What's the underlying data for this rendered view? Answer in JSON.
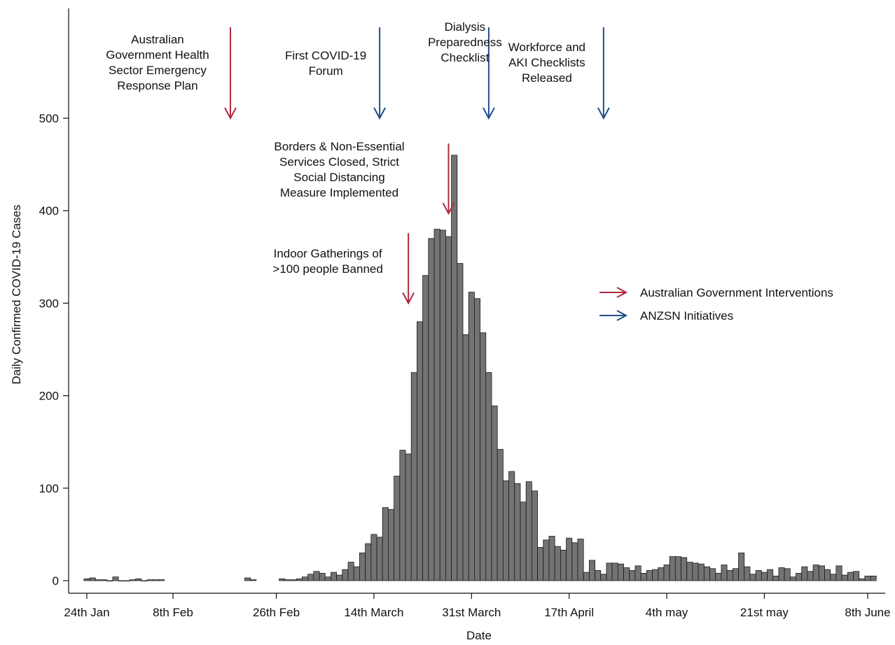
{
  "chart_data": {
    "type": "bar",
    "xlabel": "Date",
    "ylabel": "Daily Confirmed COVID-19 Cases",
    "ylim": [
      0,
      500
    ],
    "yticks": [
      0,
      100,
      200,
      300,
      400,
      500
    ],
    "x_start": "2020-01-24",
    "x_end": "2020-06-08",
    "xticks": [
      {
        "date": "2020-01-24",
        "label": "24th Jan"
      },
      {
        "date": "2020-02-08",
        "label": "8th Feb"
      },
      {
        "date": "2020-02-26",
        "label": "26th Feb"
      },
      {
        "date": "2020-03-14",
        "label": "14th March"
      },
      {
        "date": "2020-03-31",
        "label": "31st March"
      },
      {
        "date": "2020-04-17",
        "label": "17th April"
      },
      {
        "date": "2020-05-04",
        "label": "4th may"
      },
      {
        "date": "2020-05-21",
        "label": "21st may"
      },
      {
        "date": "2020-06-08",
        "label": "8th June"
      }
    ],
    "bar_color": "#737373",
    "values": [
      [
        "2020-01-24",
        2
      ],
      [
        "2020-01-25",
        3
      ],
      [
        "2020-01-26",
        1
      ],
      [
        "2020-01-27",
        1
      ],
      [
        "2020-01-28",
        0
      ],
      [
        "2020-01-29",
        4
      ],
      [
        "2020-01-30",
        0
      ],
      [
        "2020-01-31",
        0
      ],
      [
        "2020-02-01",
        1
      ],
      [
        "2020-02-02",
        2
      ],
      [
        "2020-02-03",
        0
      ],
      [
        "2020-02-04",
        1
      ],
      [
        "2020-02-05",
        1
      ],
      [
        "2020-02-06",
        1
      ],
      [
        "2020-02-21",
        3
      ],
      [
        "2020-02-22",
        1
      ],
      [
        "2020-02-27",
        2
      ],
      [
        "2020-02-28",
        1
      ],
      [
        "2020-02-29",
        1
      ],
      [
        "2020-03-01",
        2
      ],
      [
        "2020-03-02",
        4
      ],
      [
        "2020-03-03",
        7
      ],
      [
        "2020-03-04",
        10
      ],
      [
        "2020-03-05",
        8
      ],
      [
        "2020-03-06",
        4
      ],
      [
        "2020-03-07",
        9
      ],
      [
        "2020-03-08",
        6
      ],
      [
        "2020-03-09",
        12
      ],
      [
        "2020-03-10",
        20
      ],
      [
        "2020-03-11",
        15
      ],
      [
        "2020-03-12",
        30
      ],
      [
        "2020-03-13",
        40
      ],
      [
        "2020-03-14",
        50
      ],
      [
        "2020-03-15",
        47
      ],
      [
        "2020-03-16",
        79
      ],
      [
        "2020-03-17",
        77
      ],
      [
        "2020-03-18",
        113
      ],
      [
        "2020-03-19",
        141
      ],
      [
        "2020-03-20",
        137
      ],
      [
        "2020-03-21",
        225
      ],
      [
        "2020-03-22",
        280
      ],
      [
        "2020-03-23",
        330
      ],
      [
        "2020-03-24",
        370
      ],
      [
        "2020-03-25",
        380
      ],
      [
        "2020-03-26",
        379
      ],
      [
        "2020-03-27",
        372
      ],
      [
        "2020-03-28",
        460
      ],
      [
        "2020-03-29",
        343
      ],
      [
        "2020-03-30",
        266
      ],
      [
        "2020-03-31",
        312
      ],
      [
        "2020-04-01",
        305
      ],
      [
        "2020-04-02",
        268
      ],
      [
        "2020-04-03",
        225
      ],
      [
        "2020-04-04",
        189
      ],
      [
        "2020-04-05",
        142
      ],
      [
        "2020-04-06",
        108
      ],
      [
        "2020-04-07",
        118
      ],
      [
        "2020-04-08",
        105
      ],
      [
        "2020-04-09",
        85
      ],
      [
        "2020-04-10",
        107
      ],
      [
        "2020-04-11",
        97
      ],
      [
        "2020-04-12",
        36
      ],
      [
        "2020-04-13",
        44
      ],
      [
        "2020-04-14",
        48
      ],
      [
        "2020-04-15",
        37
      ],
      [
        "2020-04-16",
        33
      ],
      [
        "2020-04-17",
        46
      ],
      [
        "2020-04-18",
        41
      ],
      [
        "2020-04-19",
        45
      ],
      [
        "2020-04-20",
        9
      ],
      [
        "2020-04-21",
        22
      ],
      [
        "2020-04-22",
        11
      ],
      [
        "2020-04-23",
        7
      ],
      [
        "2020-04-24",
        19
      ],
      [
        "2020-04-25",
        19
      ],
      [
        "2020-04-26",
        18
      ],
      [
        "2020-04-27",
        14
      ],
      [
        "2020-04-28",
        11
      ],
      [
        "2020-04-29",
        16
      ],
      [
        "2020-04-30",
        8
      ],
      [
        "2020-05-01",
        11
      ],
      [
        "2020-05-02",
        12
      ],
      [
        "2020-05-03",
        14
      ],
      [
        "2020-05-04",
        17
      ],
      [
        "2020-05-05",
        26
      ],
      [
        "2020-05-06",
        26
      ],
      [
        "2020-05-07",
        25
      ],
      [
        "2020-05-08",
        20
      ],
      [
        "2020-05-09",
        19
      ],
      [
        "2020-05-10",
        18
      ],
      [
        "2020-05-11",
        15
      ],
      [
        "2020-05-12",
        13
      ],
      [
        "2020-05-13",
        8
      ],
      [
        "2020-05-14",
        17
      ],
      [
        "2020-05-15",
        11
      ],
      [
        "2020-05-16",
        13
      ],
      [
        "2020-05-17",
        30
      ],
      [
        "2020-05-18",
        15
      ],
      [
        "2020-05-19",
        7
      ],
      [
        "2020-05-20",
        11
      ],
      [
        "2020-05-21",
        9
      ],
      [
        "2020-05-22",
        12
      ],
      [
        "2020-05-23",
        5
      ],
      [
        "2020-05-24",
        14
      ],
      [
        "2020-05-25",
        13
      ],
      [
        "2020-05-26",
        4
      ],
      [
        "2020-05-27",
        8
      ],
      [
        "2020-05-28",
        15
      ],
      [
        "2020-05-29",
        10
      ],
      [
        "2020-05-30",
        17
      ],
      [
        "2020-05-31",
        16
      ],
      [
        "2020-06-01",
        12
      ],
      [
        "2020-06-02",
        7
      ],
      [
        "2020-06-03",
        16
      ],
      [
        "2020-06-04",
        6
      ],
      [
        "2020-06-05",
        9
      ],
      [
        "2020-06-06",
        10
      ],
      [
        "2020-06-07",
        2
      ],
      [
        "2020-06-08",
        5
      ],
      [
        "2020-06-09",
        5
      ]
    ],
    "annotations": [
      {
        "category": "government",
        "date": "2020-02-18",
        "tip_value": 500,
        "lines": [
          "Australian",
          "Government Health",
          "Sector Emergency",
          "Response Plan"
        ]
      },
      {
        "category": "anzsn",
        "date": "2020-03-15",
        "tip_value": 500,
        "lines": [
          "First COVID-19",
          "Forum"
        ]
      },
      {
        "category": "anzsn",
        "date": "2020-04-03",
        "tip_value": 500,
        "lines": [
          "Dialysis",
          "Preparedness",
          "Checklist"
        ]
      },
      {
        "category": "anzsn",
        "date": "2020-04-23",
        "tip_value": 500,
        "lines": [
          "Workforce and",
          "AKI Checklists",
          "Released"
        ]
      },
      {
        "category": "government",
        "date": "2020-03-27",
        "tip_value": 397,
        "lines": [
          "Borders & Non-Essential",
          "Services Closed, Strict",
          "Social Distancing",
          "Measure Implemented"
        ]
      },
      {
        "category": "government",
        "date": "2020-03-20",
        "tip_value": 300,
        "lines": [
          "Indoor Gatherings of",
          ">100 people Banned"
        ]
      }
    ],
    "legend": {
      "position": "right",
      "items": [
        {
          "category": "government",
          "label": "Australian Government Interventions",
          "color": "#b0293e"
        },
        {
          "category": "anzsn",
          "label": "ANZSN Initiatives",
          "color": "#1f4e8c"
        }
      ]
    }
  }
}
